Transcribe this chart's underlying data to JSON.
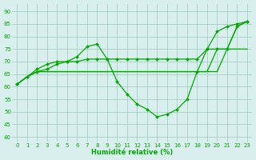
{
  "xlabel": "Humidité relative (%)",
  "background_color": "#d8efed",
  "grid_color": "#99ccbb",
  "line_color": "#00aa00",
  "ylim": [
    38,
    93
  ],
  "xlim": [
    -0.5,
    23.5
  ],
  "yticks": [
    40,
    45,
    50,
    55,
    60,
    65,
    70,
    75,
    80,
    85,
    90
  ],
  "xticks": [
    0,
    1,
    2,
    3,
    4,
    5,
    6,
    7,
    8,
    9,
    10,
    11,
    12,
    13,
    14,
    15,
    16,
    17,
    18,
    19,
    20,
    21,
    22,
    23
  ],
  "series1": [
    61,
    64,
    67,
    69,
    70,
    70,
    72,
    76,
    77,
    71,
    62,
    57,
    53,
    51,
    48,
    49,
    51,
    55,
    66,
    75,
    82,
    84,
    85,
    86
  ],
  "series2": [
    61,
    64,
    66,
    67,
    69,
    70,
    70,
    71,
    71,
    71,
    71,
    71,
    71,
    71,
    71,
    71,
    71,
    71,
    71,
    75,
    75,
    75,
    84,
    86
  ],
  "series3": [
    61,
    64,
    66,
    66,
    66,
    66,
    66,
    66,
    66,
    66,
    66,
    66,
    66,
    66,
    66,
    66,
    66,
    66,
    66,
    66,
    66,
    75,
    75,
    75
  ],
  "series4": [
    61,
    64,
    66,
    66,
    66,
    66,
    66,
    66,
    66,
    66,
    66,
    66,
    66,
    66,
    66,
    66,
    66,
    66,
    66,
    66,
    75,
    75,
    84,
    86
  ]
}
